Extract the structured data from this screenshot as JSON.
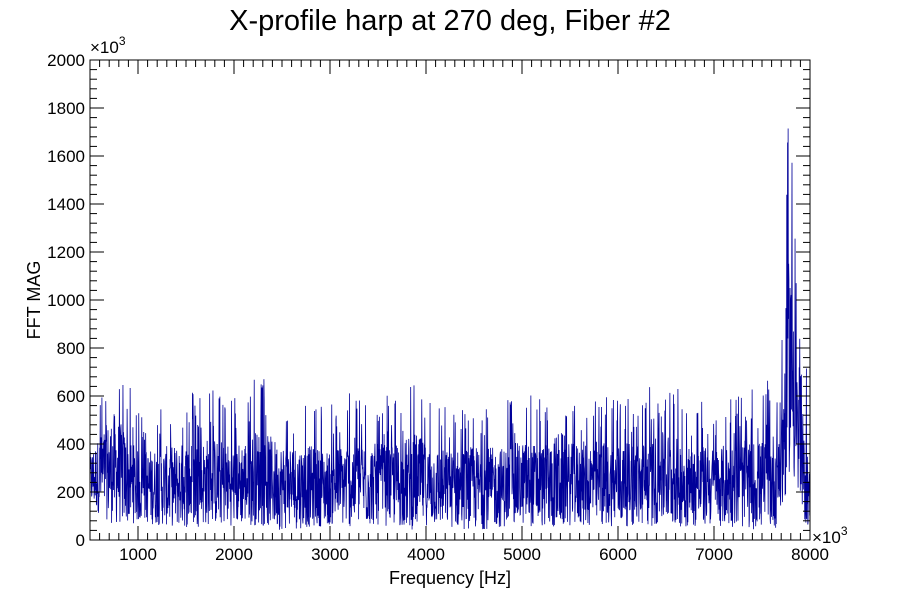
{
  "chart_data": {
    "type": "line",
    "title": "X-profile harp at 270 deg, Fiber #2",
    "xlabel": "Frequency [Hz]",
    "ylabel": "FFT MAG",
    "x_multiplier": "×10",
    "x_multiplier_exp": "3",
    "y_multiplier": "×10",
    "y_multiplier_exp": "3",
    "xlim": [
      500,
      8000
    ],
    "ylim": [
      0,
      2000
    ],
    "xticks": [
      1000,
      2000,
      3000,
      4000,
      5000,
      6000,
      7000,
      8000
    ],
    "yticks": [
      0,
      200,
      400,
      600,
      800,
      1000,
      1200,
      1400,
      1600,
      1800,
      2000
    ],
    "grid": false,
    "series": [
      {
        "color": "#000099",
        "x": [
          500,
          750,
          1000,
          1250,
          1500,
          1750,
          2000,
          2250,
          2500,
          2750,
          3000,
          3250,
          3500,
          3750,
          3880,
          4000,
          4250,
          4500,
          4750,
          5000,
          5250,
          5400,
          5500,
          5750,
          6000,
          6250,
          6500,
          6750,
          7000,
          7250,
          7500,
          7650,
          7720,
          7760,
          7790,
          7810,
          7830,
          7850,
          7870,
          7900,
          7930,
          7960,
          8000
        ],
        "y_min": [
          140,
          60,
          70,
          60,
          50,
          60,
          60,
          60,
          40,
          50,
          60,
          50,
          60,
          50,
          40,
          60,
          50,
          40,
          50,
          60,
          50,
          40,
          60,
          50,
          60,
          50,
          60,
          50,
          60,
          50,
          40,
          50,
          100,
          200,
          300,
          250,
          200,
          250,
          150,
          100,
          80,
          60,
          50
        ],
        "y_max": [
          500,
          810,
          550,
          580,
          620,
          650,
          600,
          700,
          620,
          600,
          560,
          650,
          600,
          620,
          700,
          600,
          560,
          600,
          580,
          620,
          600,
          710,
          600,
          640,
          600,
          620,
          690,
          600,
          580,
          620,
          640,
          700,
          1000,
          1600,
          1900,
          1750,
          1800,
          1300,
          1000,
          800,
          600,
          750,
          350
        ]
      }
    ]
  }
}
